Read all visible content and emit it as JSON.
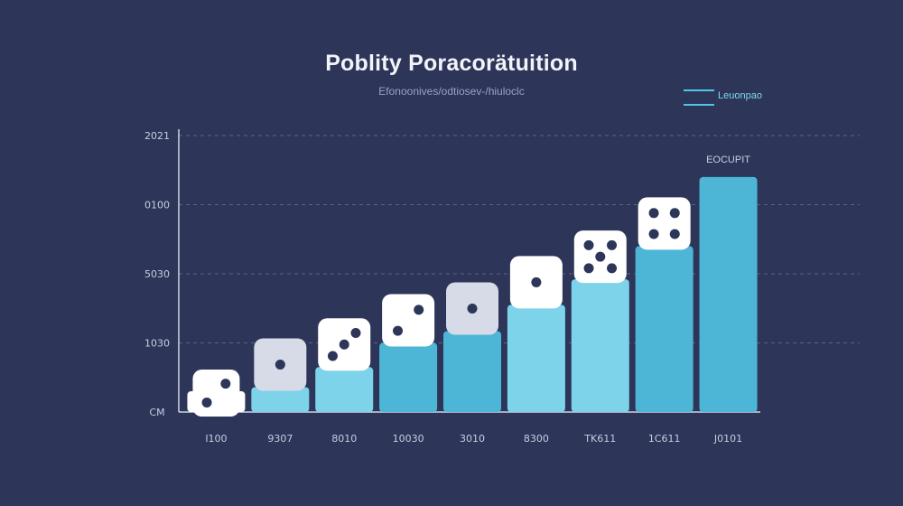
{
  "chart_data": {
    "type": "bar",
    "title": "Poblity Poracorätuition",
    "subtitle": "Efonoonives/odtiosev-/hiuloclc",
    "legend": {
      "label": "Leuonpao",
      "placement": "top-right"
    },
    "series_label": "EOCUPIT",
    "y_ticks": [
      "2021",
      "0100",
      "5030",
      "1030",
      "CM"
    ],
    "ylim": [
      0,
      4
    ],
    "grid": true,
    "categories": [
      "I100",
      "9307",
      "8010",
      "10030",
      "3010",
      "8300",
      "TK611",
      "1C611",
      "J0101"
    ],
    "values": [
      0.3,
      0.36,
      0.65,
      1.0,
      1.17,
      1.55,
      1.92,
      2.4,
      3.4
    ],
    "bar_colors": [
      "#ffffff",
      "#7dd3ea",
      "#7dd3ea",
      "#4db6d6",
      "#4db6d6",
      "#7dd3ea",
      "#7dd3ea",
      "#4db6d6",
      "#4db6d6"
    ],
    "dice": [
      {
        "face": 2,
        "tinted": false
      },
      {
        "face": 1,
        "tinted": true
      },
      {
        "face": 3,
        "tinted": false
      },
      {
        "face": 2,
        "tinted": false
      },
      {
        "face": 1,
        "tinted": true
      },
      {
        "face": 1,
        "tinted": false
      },
      {
        "face": 5,
        "tinted": false
      },
      {
        "face": 4,
        "tinted": false
      },
      {
        "face": 0,
        "tinted": false
      }
    ]
  }
}
